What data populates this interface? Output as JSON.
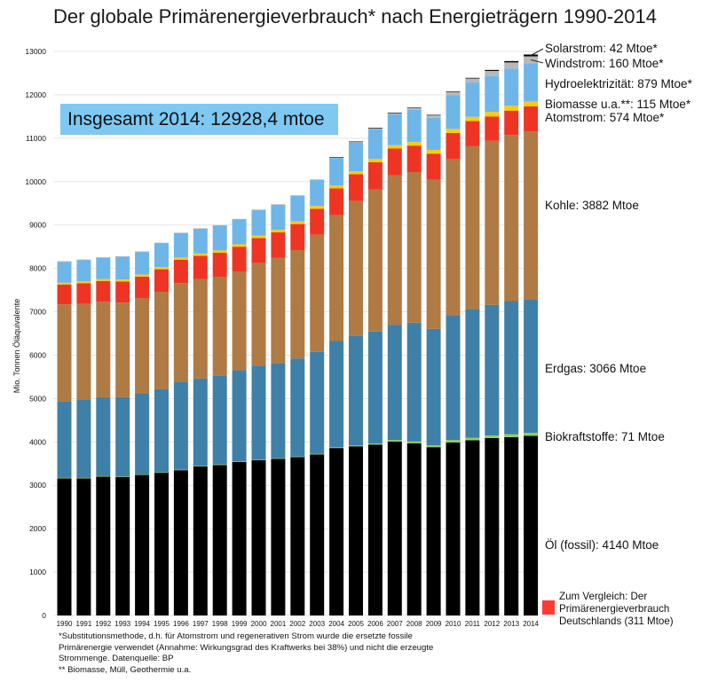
{
  "colors": {
    "oel": "#000000",
    "biokraftstoffe": "#8fd14f",
    "erdgas": "#3f80a8",
    "kohle": "#b07a45",
    "atomstrom": "#ee3524",
    "biomasse": "#ffcc00",
    "hydro": "#6eb6e8",
    "windstrom": "#b8b8b8",
    "solarstrom": "#050505",
    "compare_swatch": "#ff3b30"
  },
  "chart_data": {
    "type": "bar",
    "stacked": true,
    "title": "Der globale Primärenergieverbrauch* nach Energieträgern 1990-2014",
    "ylabel": "Mio. Tonnen Öläquivalente",
    "ylim": [
      0,
      13000
    ],
    "yticks": [
      0,
      1000,
      2000,
      3000,
      4000,
      5000,
      6000,
      7000,
      8000,
      9000,
      10000,
      11000,
      12000,
      13000
    ],
    "grid": true,
    "categories": [
      "1990",
      "1991",
      "1992",
      "1993",
      "1994",
      "1995",
      "1996",
      "1997",
      "1998",
      "1999",
      "2000",
      "2001",
      "2002",
      "2003",
      "2004",
      "2005",
      "2006",
      "2007",
      "2008",
      "2009",
      "2010",
      "2011",
      "2012",
      "2013",
      "2014"
    ],
    "series": [
      {
        "name": "Öl (fossil)",
        "key": "oel",
        "values": [
          3160,
          3160,
          3200,
          3190,
          3240,
          3290,
          3350,
          3440,
          3470,
          3540,
          3580,
          3610,
          3650,
          3710,
          3860,
          3900,
          3940,
          4010,
          3970,
          3880,
          3990,
          4040,
          4090,
          4110,
          4140
        ]
      },
      {
        "name": "Biokraftstoffe",
        "key": "biokraftstoffe",
        "values": [
          10,
          10,
          10,
          10,
          10,
          10,
          10,
          10,
          10,
          10,
          10,
          10,
          12,
          14,
          16,
          20,
          26,
          32,
          40,
          45,
          52,
          55,
          60,
          66,
          71
        ]
      },
      {
        "name": "Erdgas",
        "key": "erdgas",
        "values": [
          1770,
          1810,
          1820,
          1830,
          1860,
          1920,
          2030,
          2010,
          2040,
          2100,
          2170,
          2200,
          2260,
          2350,
          2450,
          2520,
          2580,
          2660,
          2740,
          2680,
          2880,
          2970,
          3010,
          3070,
          3066
        ]
      },
      {
        "name": "Kohle",
        "key": "kohle",
        "values": [
          2230,
          2200,
          2200,
          2180,
          2200,
          2240,
          2270,
          2290,
          2280,
          2280,
          2360,
          2420,
          2500,
          2700,
          2900,
          3110,
          3270,
          3440,
          3470,
          3440,
          3590,
          3750,
          3780,
          3830,
          3882
        ]
      },
      {
        "name": "Atomstrom",
        "key": "atomstrom",
        "values": [
          460,
          480,
          480,
          490,
          500,
          520,
          540,
          540,
          560,
          570,
          580,
          590,
          600,
          600,
          620,
          620,
          630,
          620,
          610,
          600,
          610,
          580,
          560,
          560,
          574
        ]
      },
      {
        "name": "Biomasse u.a.",
        "key": "biomasse",
        "values": [
          40,
          41,
          43,
          45,
          47,
          48,
          50,
          52,
          54,
          56,
          58,
          60,
          62,
          64,
          67,
          70,
          74,
          78,
          82,
          86,
          92,
          98,
          104,
          110,
          115
        ]
      },
      {
        "name": "Hydroelektrizität",
        "key": "hydro",
        "values": [
          490,
          500,
          500,
          530,
          530,
          560,
          570,
          580,
          580,
          580,
          590,
          580,
          590,
          600,
          630,
          660,
          690,
          710,
          740,
          740,
          780,
          790,
          830,
          860,
          879
        ]
      },
      {
        "name": "Windstrom",
        "key": "windstrom",
        "values": [
          1,
          1,
          1,
          1,
          2,
          2,
          2,
          2,
          3,
          4,
          7,
          9,
          12,
          14,
          19,
          24,
          30,
          38,
          50,
          62,
          77,
          94,
          117,
          141,
          160
        ]
      },
      {
        "name": "Solarstrom",
        "key": "solarstrom",
        "values": [
          0,
          0,
          0,
          0,
          0,
          0,
          0,
          0,
          0,
          0,
          0,
          0,
          0,
          0,
          1,
          1,
          2,
          2,
          3,
          5,
          7,
          14,
          23,
          31,
          42
        ]
      }
    ]
  },
  "annotations": {
    "solarstrom": "Solarstrom: 42 Mtoe*",
    "windstrom": "Windstrom: 160 Mtoe*",
    "hydro": "Hydroelektrizität: 879 Mtoe*",
    "biomasse": "Biomasse u.a.**: 115 Mtoe*",
    "atomstrom": "Atomstrom: 574 Mtoe*",
    "kohle": "Kohle: 3882 Mtoe",
    "erdgas": "Erdgas: 3066 Mtoe",
    "biokraftstoffe": "Biokraftstoffe: 71 Mtoe",
    "oel": "Öl (fossil): 4140 Mtoe"
  },
  "total_box": "Insgesamt 2014: 12928,4 mtoe",
  "footnote": {
    "line1": "*Substitutionsmethode, d.h. für Atomstrom und regenerativen Strom wurde die ersetzte fossile",
    "line2": "Primärenergie verwendet (Annahme: Wirkungsgrad des Kraftwerks bei 38%) und nicht die erzeugte",
    "line3": "Strommenge. Datenquelle: BP",
    "line4": "** Biomasse, Müll, Geothermie u.a."
  },
  "compare": {
    "text": "Zum Vergleich: Der Primärenergieverbrauch Deutschlands (311 Mtoe)"
  }
}
